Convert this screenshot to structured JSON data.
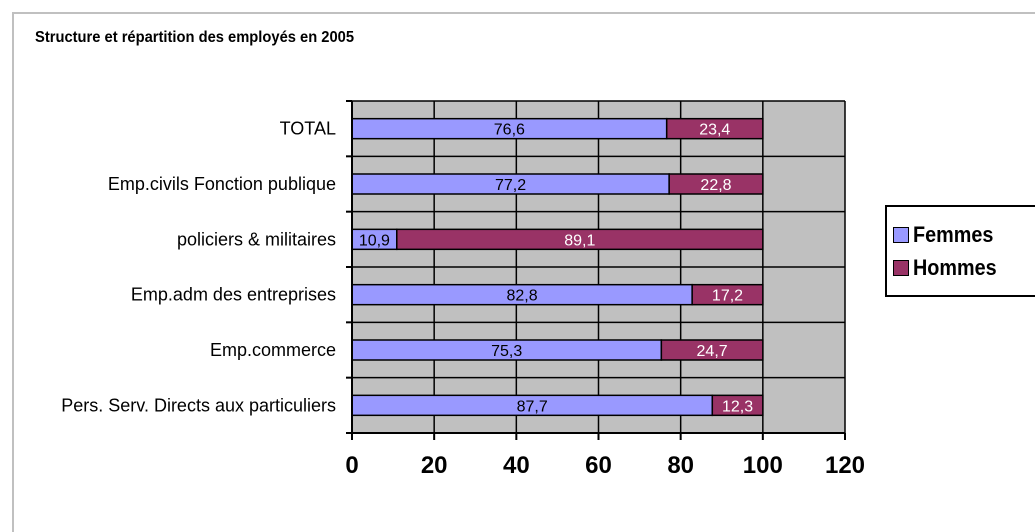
{
  "chart_data": {
    "type": "bar",
    "orientation": "horizontal",
    "stacked": true,
    "title": "Structure et répartition des employés en 2005",
    "categories": [
      "TOTAL",
      "Emp.civils Fonction publique",
      "policiers & militaires",
      "Emp.adm des entreprises",
      "Emp.commerce",
      "Pers. Serv. Directs aux particuliers"
    ],
    "series": [
      {
        "name": "Femmes",
        "color": "#9999ff",
        "values": [
          76.6,
          77.2,
          10.9,
          82.8,
          75.3,
          87.7
        ],
        "labels": [
          "76,6",
          "77,2",
          "10,9",
          "82,8",
          "75,3",
          "87,7"
        ]
      },
      {
        "name": "Hommes",
        "color": "#993366",
        "values": [
          23.4,
          22.8,
          89.1,
          17.2,
          24.7,
          12.3
        ],
        "labels": [
          "23,4",
          "22,8",
          "89,1",
          "17,2",
          "24,7",
          "12,3"
        ]
      }
    ],
    "xlim": [
      0,
      120
    ],
    "xticks": [
      "0",
      "20",
      "40",
      "60",
      "80",
      "100",
      "120"
    ],
    "grid": true,
    "plot_background": "#c0c0c0",
    "legend_position": "right"
  }
}
